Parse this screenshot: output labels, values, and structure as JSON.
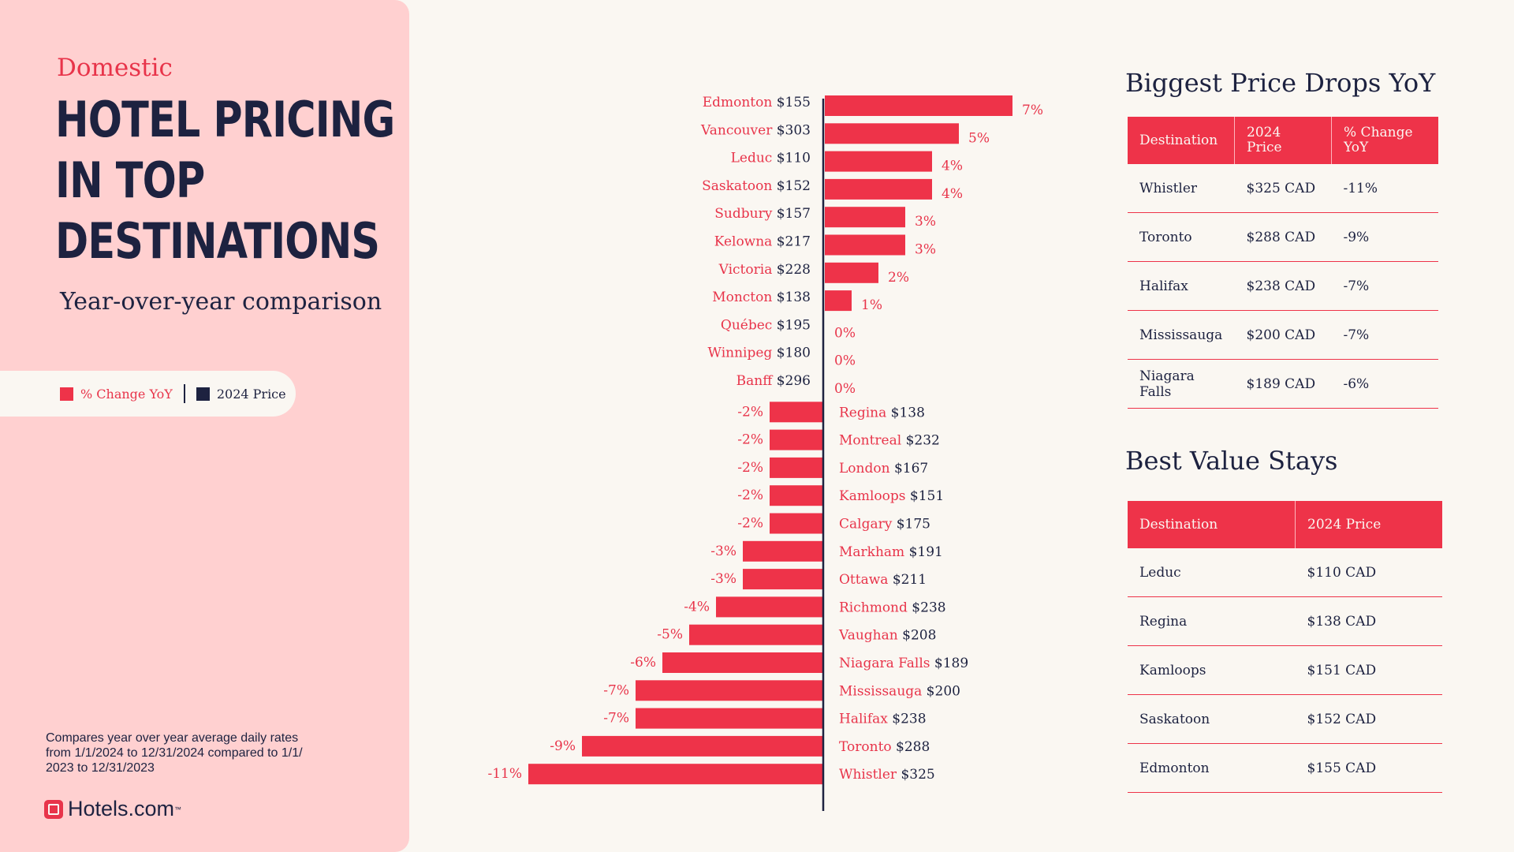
{
  "header": {
    "eyebrow": "Domestic",
    "title_lines": [
      "HOTEL PRICING",
      "IN TOP",
      "DESTINATIONS"
    ],
    "subtitle": "Year-over-year comparison"
  },
  "legend": {
    "pct_label": "% Change YoY",
    "price_label": "2024 Price",
    "pct_color": "#ee3349",
    "price_color": "#1d2240"
  },
  "footnote": "Compares year over year average daily rates from 1/1/2024 to 12/31/2024 compared to 1/1/ 2023 to 12/31/2023",
  "brand": {
    "name": "Hotels.com",
    "tm": "™",
    "icon": "hotels-logo-icon"
  },
  "chart_data": {
    "type": "bar",
    "orientation": "horizontal",
    "rows": [
      {
        "city": "Edmonton",
        "price": "$155",
        "pct": 7
      },
      {
        "city": "Vancouver",
        "price": "$303",
        "pct": 5
      },
      {
        "city": "Leduc",
        "price": "$110",
        "pct": 4
      },
      {
        "city": "Saskatoon",
        "price": "$152",
        "pct": 4
      },
      {
        "city": "Sudbury",
        "price": "$157",
        "pct": 3
      },
      {
        "city": "Kelowna",
        "price": "$217",
        "pct": 3
      },
      {
        "city": "Victoria",
        "price": "$228",
        "pct": 2
      },
      {
        "city": "Moncton",
        "price": "$138",
        "pct": 1
      },
      {
        "city": "Québec",
        "price": "$195",
        "pct": 0
      },
      {
        "city": "Winnipeg",
        "price": "$180",
        "pct": 0
      },
      {
        "city": "Banff",
        "price": "$296",
        "pct": 0
      },
      {
        "city": "Regina",
        "price": "$138",
        "pct": -2
      },
      {
        "city": "Montreal",
        "price": "$232",
        "pct": -2
      },
      {
        "city": "London",
        "price": "$167",
        "pct": -2
      },
      {
        "city": "Kamloops",
        "price": "$151",
        "pct": -2
      },
      {
        "city": "Calgary",
        "price": "$175",
        "pct": -2
      },
      {
        "city": "Markham",
        "price": "$191",
        "pct": -3
      },
      {
        "city": "Ottawa",
        "price": "$211",
        "pct": -3
      },
      {
        "city": "Richmond",
        "price": "$238",
        "pct": -4
      },
      {
        "city": "Vaughan",
        "price": "$208",
        "pct": -5
      },
      {
        "city": "Niagara Falls",
        "price": "$189",
        "pct": -6
      },
      {
        "city": "Mississauga",
        "price": "$200",
        "pct": -7
      },
      {
        "city": "Halifax",
        "price": "$238",
        "pct": -7
      },
      {
        "city": "Toronto",
        "price": "$288",
        "pct": -9
      },
      {
        "city": "Whistler",
        "price": "$325",
        "pct": -11
      }
    ],
    "xlim": [
      -11,
      7
    ]
  },
  "drops_table": {
    "title": "Biggest Price Drops YoY",
    "headers": [
      "Destination",
      "2024 Price",
      "% Change YoY"
    ],
    "rows": [
      [
        "Whistler",
        "$325 CAD",
        "-11%"
      ],
      [
        "Toronto",
        "$288 CAD",
        "-9%"
      ],
      [
        "Halifax",
        "$238 CAD",
        "-7%"
      ],
      [
        "Mississauga",
        "$200 CAD",
        "-7%"
      ],
      [
        "Niagara Falls",
        "$189 CAD",
        "-6%"
      ]
    ]
  },
  "value_table": {
    "title": "Best Value Stays",
    "headers": [
      "Destination",
      "2024 Price"
    ],
    "rows": [
      [
        "Leduc",
        "$110 CAD"
      ],
      [
        "Regina",
        "$138 CAD"
      ],
      [
        "Kamloops",
        "$151 CAD"
      ],
      [
        "Saskatoon",
        "$152 CAD"
      ],
      [
        "Edmonton",
        "$155 CAD"
      ]
    ]
  }
}
